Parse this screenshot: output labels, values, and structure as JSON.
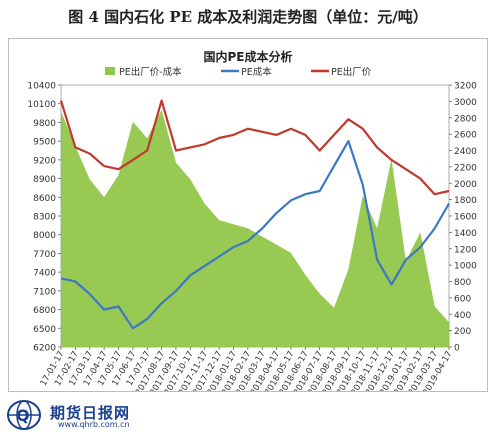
{
  "figure_title": "图 4  国内石化 PE 成本及利润走势图（单位：元/吨）",
  "watermark": {
    "text": "期货日报网",
    "url": "www.qhrb.com.cn"
  },
  "chart_data": {
    "type": "line",
    "title": "国内PE成本分析",
    "legend_position": "top",
    "colors": {
      "margin": "#92c64a",
      "cost": "#3d78c4",
      "price": "#c0392b"
    },
    "x_labels": [
      "2017-01-17",
      "2017-02-17",
      "2017-03-17",
      "2017-04-17",
      "2017-05-17",
      "2017-06-17",
      "2017-07-17",
      "2017-08-17",
      "2017-09-17",
      "2017-10-17",
      "2017-11-17",
      "2017-12-17",
      "2018-01-17",
      "2018-02-17",
      "2018-03-17",
      "2018-04-17",
      "2018-05-17",
      "2018-06-17",
      "2018-07-17",
      "2018-08-17",
      "2018-09-17",
      "2018-10-17",
      "2018-11-17",
      "2018-12-17",
      "2019-01-17",
      "2019-02-17",
      "2019-03-17",
      "2019-04-17"
    ],
    "x_tick_labels_shown": [
      "17-01-17",
      "17-02-17",
      "17-03-17",
      "17-04-17",
      "17-05-17",
      "17-06-17",
      "17-07-17",
      "2017-08-17",
      "2017-09-17",
      "2017-10-17",
      "2017-11-17",
      "2017-12-17",
      "2018-01-17",
      "2018-02-17",
      "2018-03-17",
      "2018-04-17",
      "2018-05-17",
      "2018-06-17",
      "2018-07-17",
      "2018-08-17",
      "2018-09-17",
      "2018-10-17",
      "2018-11-17",
      "2018-12-17",
      "2019-01-17",
      "2019-02-17",
      "2019-03-17",
      "2019-04-17"
    ],
    "y_left": {
      "min": 6200,
      "max": 10400,
      "ticks": [
        6200,
        6500,
        6800,
        7100,
        7400,
        7700,
        8000,
        8300,
        8600,
        8900,
        9200,
        9500,
        9800,
        10100,
        10400
      ]
    },
    "y_right": {
      "min": 0,
      "max": 3200,
      "ticks": [
        0,
        200,
        400,
        600,
        800,
        1000,
        1200,
        1400,
        1600,
        1800,
        2000,
        2200,
        2400,
        2600,
        2800,
        3000,
        3200
      ]
    },
    "series": [
      {
        "name": "PE出厂价-成本",
        "kind": "area",
        "axis": "right",
        "values": [
          2880,
          2450,
          2050,
          1830,
          2100,
          2750,
          2550,
          2900,
          2250,
          2050,
          1750,
          1550,
          1500,
          1450,
          1350,
          1250,
          1150,
          880,
          650,
          480,
          950,
          1850,
          1450,
          2300,
          1050,
          1400,
          500,
          300
        ]
      },
      {
        "name": "PE成本",
        "kind": "line",
        "axis": "left",
        "values": [
          7300,
          7250,
          7050,
          6800,
          6850,
          6500,
          6650,
          6900,
          7100,
          7350,
          7500,
          7650,
          7800,
          7900,
          8100,
          8350,
          8550,
          8650,
          8700,
          9100,
          9500,
          8800,
          7600,
          7200,
          7600,
          7800,
          8100,
          8500
        ]
      },
      {
        "name": "PE出厂价",
        "kind": "line",
        "axis": "left",
        "values": [
          10150,
          9400,
          9300,
          9100,
          9050,
          9200,
          9350,
          10150,
          9350,
          9400,
          9450,
          9550,
          9600,
          9700,
          9650,
          9600,
          9700,
          9600,
          9350,
          9600,
          9850,
          9700,
          9400,
          9200,
          9050,
          8900,
          8650,
          8700
        ]
      }
    ]
  }
}
